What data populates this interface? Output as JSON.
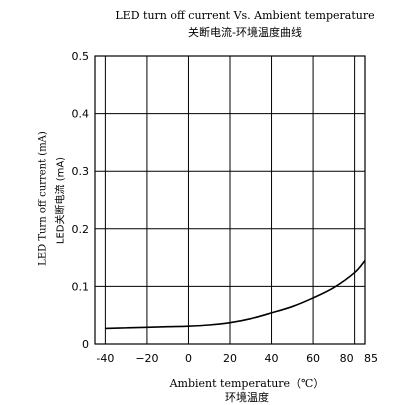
{
  "chart_data": {
    "type": "line",
    "title": "LED turn off current Vs. Ambient temperature",
    "subtitle": "关断电流-环境温度曲线",
    "xlabel": "Ambient temperature（℃）",
    "xlabel_cn": "环境温度",
    "ylabel": "LED Turn off current (mA)",
    "ylabel_cn": "LED关断电流 (mA)",
    "xlim": [
      -45,
      85
    ],
    "ylim": [
      0,
      0.5
    ],
    "x_ticks": [
      -40,
      -20,
      0,
      20,
      40,
      60,
      80,
      85
    ],
    "x_tick_labels": [
      "-40",
      "−20",
      "0",
      "20",
      "40",
      "60",
      "80",
      "85"
    ],
    "y_ticks": [
      0,
      0.1,
      0.2,
      0.3,
      0.4,
      0.5
    ],
    "y_tick_labels": [
      "0",
      "0.1",
      "0.2",
      "0.3",
      "0.4",
      "0.5"
    ],
    "grid": true,
    "series": [
      {
        "x": [
          -40,
          -30,
          -20,
          -10,
          0,
          10,
          20,
          30,
          40,
          50,
          60,
          70,
          80,
          85
        ],
        "values": [
          0.027,
          0.028,
          0.029,
          0.03,
          0.031,
          0.033,
          0.037,
          0.044,
          0.054,
          0.065,
          0.08,
          0.098,
          0.124,
          0.145
        ],
        "color": "#000000"
      }
    ]
  }
}
